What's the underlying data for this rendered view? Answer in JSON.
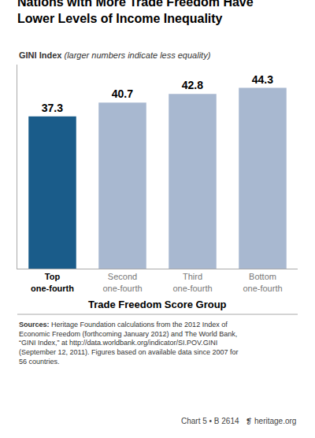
{
  "chart_data": {
    "type": "bar",
    "title": "Nations with More Trade Freedom Have\nLower Levels of Income Inequality",
    "ylabel": "GINI Index",
    "subtitle": "(larger numbers indicate less equality)",
    "xlabel": "Trade Freedom Score Group",
    "categories": [
      "Top\none-fourth",
      "Second\none-fourth",
      "Third\none-fourth",
      "Bottom\none-fourth"
    ],
    "values": [
      37.3,
      40.7,
      42.8,
      44.3
    ],
    "colors": [
      "#1a5c8a",
      "#a8b8d0",
      "#a8b8d0",
      "#a8b8d0"
    ],
    "ylim": [
      0,
      50
    ],
    "grid": false,
    "data_labels": true,
    "tick_labels": "x",
    "annotations": [
      "Sources:",
      "Heritage Foundation calculations from the 2012 Index of\nEconomic Freedom (forthcoming January 2012) and The World Bank,\n“GINI Index,” at http://data.worldbank.org/indicator/SI.POV.GINI\n(September 12, 2011). Figures based on available data since 2007 for\n56 countries.",
      "Chart 5 • B 2614",
      "❡",
      "heritage.org"
    ]
  }
}
